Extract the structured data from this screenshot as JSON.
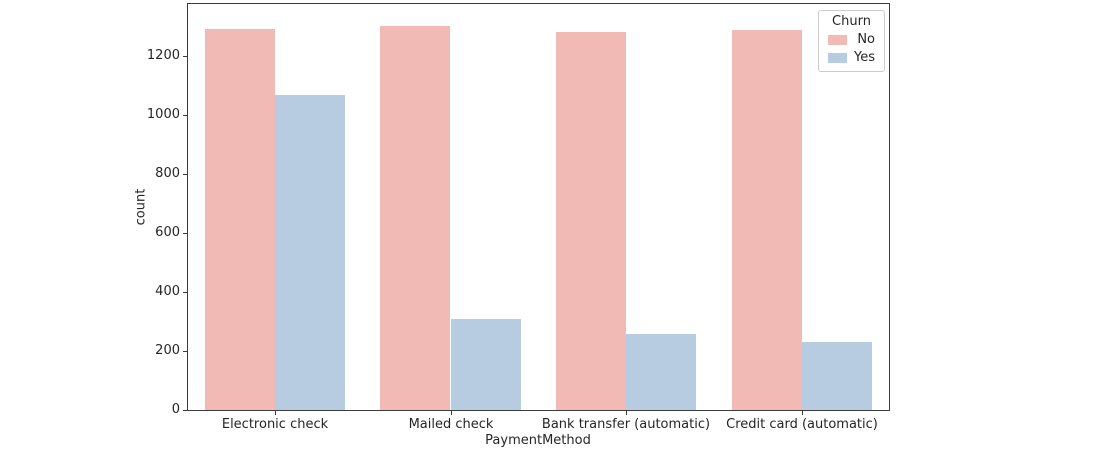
{
  "chart_data": {
    "type": "bar",
    "title": "",
    "xlabel": "PaymentMethod",
    "ylabel": "count",
    "categories": [
      "Electronic check",
      "Mailed check",
      "Bank transfer (automatic)",
      "Credit card (automatic)"
    ],
    "series": [
      {
        "name": "No",
        "color": "#f2bab5",
        "values": [
          1294,
          1304,
          1286,
          1290
        ]
      },
      {
        "name": "Yes",
        "color": "#b7cce1",
        "values": [
          1071,
          308,
          258,
          232
        ]
      }
    ],
    "yticks": [
      0,
      200,
      400,
      600,
      800,
      1000,
      1200
    ],
    "ylim": [
      0,
      1380
    ],
    "grid": false,
    "legend": {
      "title": "Churn",
      "position": "upper right"
    }
  },
  "colors": {
    "background": "#ffffff",
    "spine": "#3c3c3c",
    "text": "#262626",
    "legend_border": "#cccccc"
  }
}
